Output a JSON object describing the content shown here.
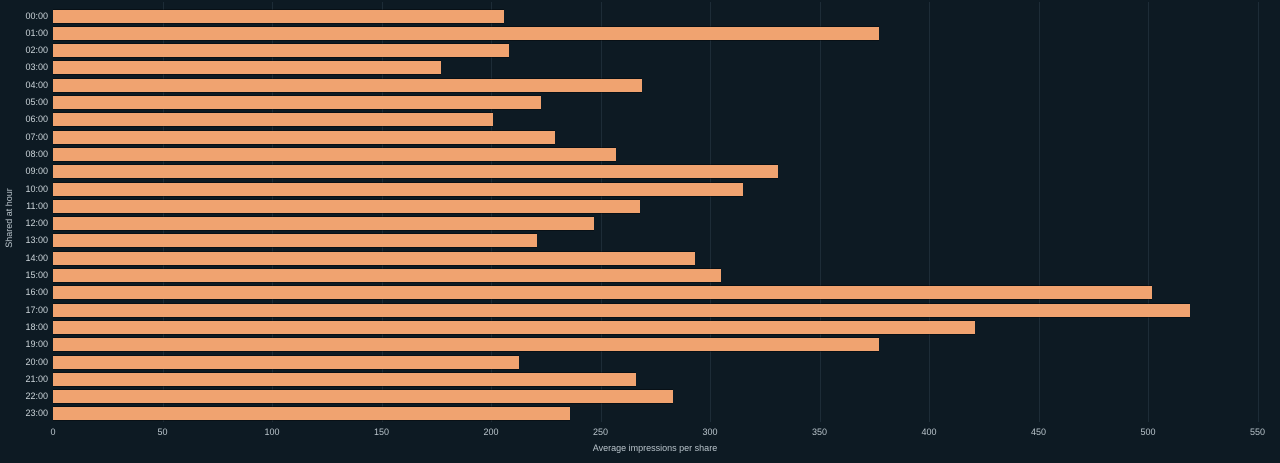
{
  "chart_data": {
    "type": "bar",
    "orientation": "horizontal",
    "title": "",
    "xlabel": "Average impressions per share",
    "ylabel": "Shared at hour",
    "categories": [
      "00:00",
      "01:00",
      "02:00",
      "03:00",
      "04:00",
      "05:00",
      "06:00",
      "07:00",
      "08:00",
      "09:00",
      "10:00",
      "11:00",
      "12:00",
      "13:00",
      "14:00",
      "15:00",
      "16:00",
      "17:00",
      "18:00",
      "19:00",
      "20:00",
      "21:00",
      "22:00",
      "23:00"
    ],
    "values": [
      206,
      377,
      208,
      177,
      269,
      223,
      201,
      229,
      257,
      331,
      315,
      268,
      247,
      221,
      293,
      305,
      502,
      519,
      421,
      377,
      213,
      266,
      283,
      236
    ],
    "xlim": [
      0,
      550
    ],
    "x_ticks": [
      0,
      50,
      100,
      150,
      200,
      250,
      300,
      350,
      400,
      450,
      500,
      550
    ],
    "grid": "vertical-only",
    "legend": "none",
    "colors": {
      "bar_fill": "#f0a370",
      "background": "#0d1a23",
      "gridline": "#1d2c37",
      "tick_label": "#b9c4cb",
      "category_label": "#ccd5da"
    }
  }
}
